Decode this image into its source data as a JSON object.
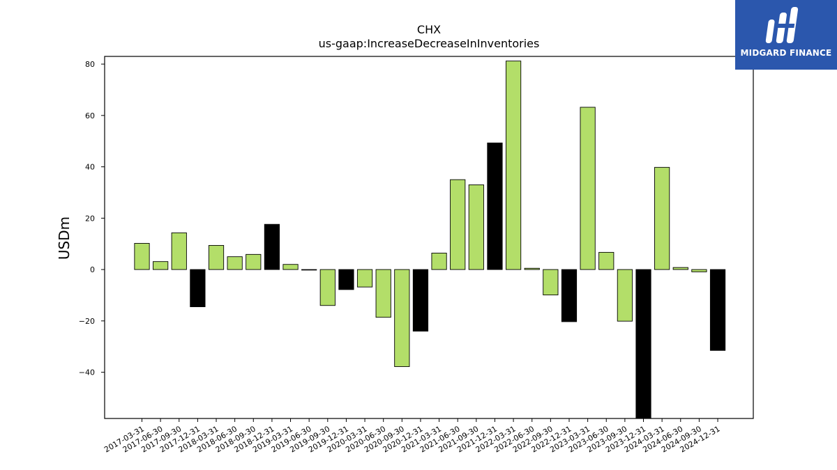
{
  "chart_data": {
    "type": "bar",
    "title": "CHX",
    "subtitle": "us-gaap:IncreaseDecreaseInInventories",
    "ylabel": "USDm",
    "ylim": [
      -58,
      83
    ],
    "yticks": [
      80,
      60,
      40,
      20,
      0,
      -20,
      -40
    ],
    "ytick_labels": [
      "80",
      "60",
      "40",
      "20",
      "0",
      "−20",
      "−40"
    ],
    "colors": {
      "quarter": "#b3de69",
      "year_end": "#000000",
      "edge": "#000000"
    },
    "categories": [
      "2017-03-31",
      "2017-06-30",
      "2017-09-30",
      "2017-12-31",
      "2018-03-31",
      "2018-06-30",
      "2018-09-30",
      "2018-12-31",
      "2019-03-31",
      "2019-06-30",
      "2019-09-30",
      "2019-12-31",
      "2020-03-31",
      "2020-06-30",
      "2020-09-30",
      "2020-12-31",
      "2021-03-31",
      "2021-06-30",
      "2021-09-30",
      "2021-12-31",
      "2022-03-31",
      "2022-06-30",
      "2022-09-30",
      "2022-12-31",
      "2023-03-31",
      "2023-06-30",
      "2023-09-30",
      "2023-12-31",
      "2024-03-31",
      "2024-06-30",
      "2024-09-30",
      "2024-12-31"
    ],
    "values": [
      10.2,
      3.1,
      14.3,
      -14.5,
      9.4,
      5.0,
      5.9,
      17.6,
      2.0,
      -0.2,
      -14.0,
      -7.8,
      -6.8,
      -18.6,
      -37.8,
      -24.0,
      6.4,
      35.0,
      33.0,
      49.3,
      81.2,
      0.5,
      -9.9,
      -20.3,
      63.2,
      6.7,
      -20.1,
      -58.0,
      39.8,
      0.8,
      -0.9,
      -31.5
    ],
    "grid": false,
    "legend": "none"
  },
  "logo": {
    "text": "MIDGARD FINANCE"
  }
}
